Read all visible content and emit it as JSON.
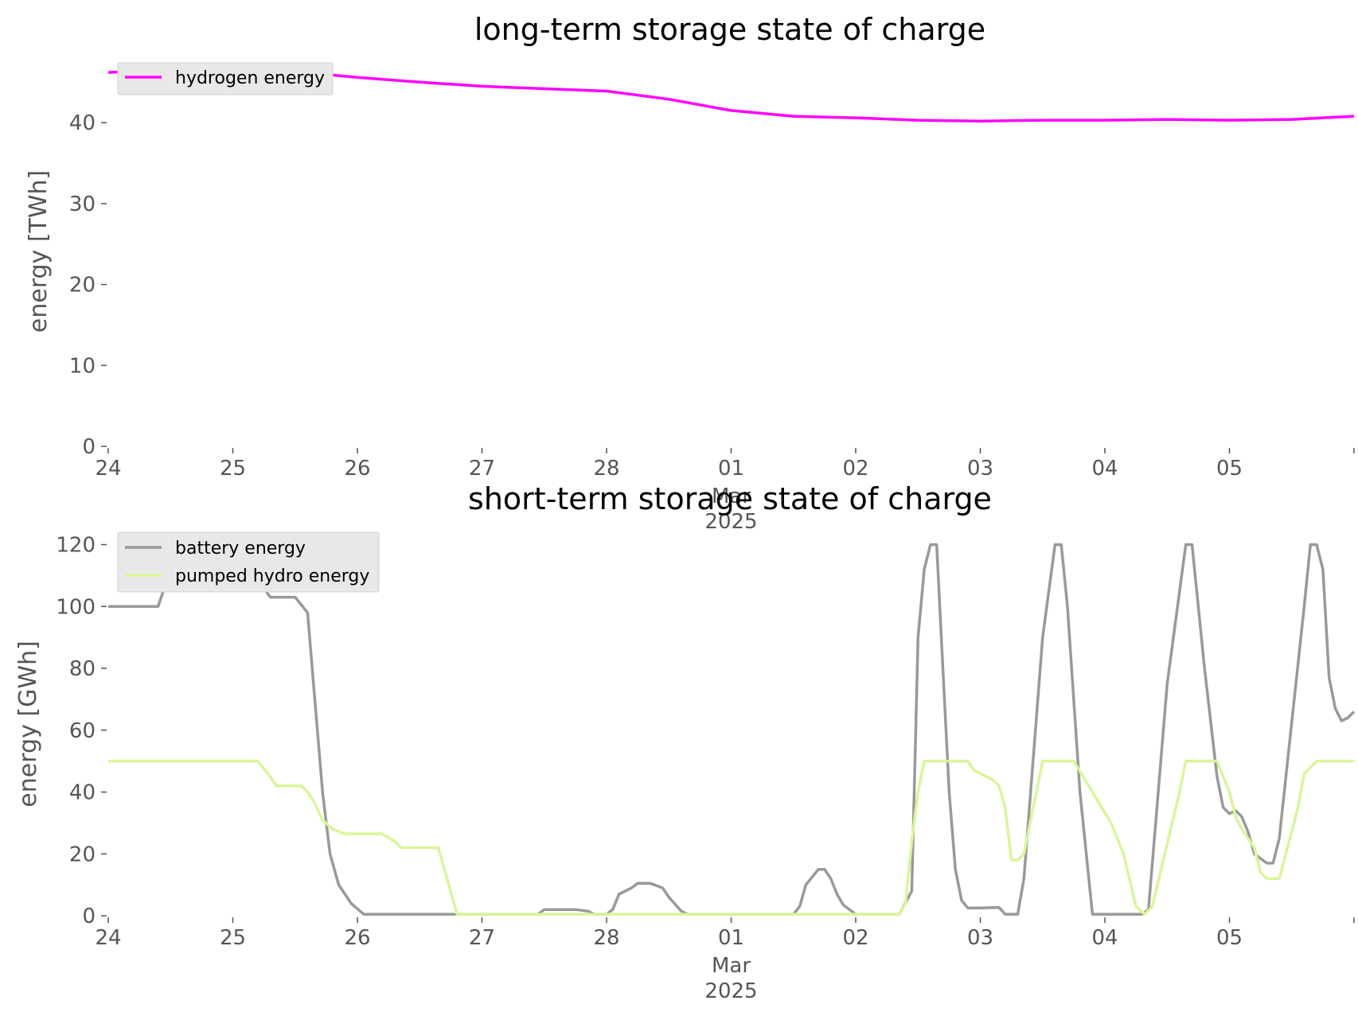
{
  "chart_data": [
    {
      "type": "line",
      "title": "long-term storage state of charge",
      "ylabel": "energy [TWh]",
      "xlabel": "",
      "ylim": [
        0,
        47
      ],
      "x_tick_labels": [
        "24",
        "25",
        "26",
        "27",
        "28",
        "01",
        "02",
        "03",
        "04",
        "05"
      ],
      "x_month_label": "Mar",
      "x_year_label": "2025",
      "y_ticks": [
        0,
        10,
        20,
        30,
        40
      ],
      "grid": false,
      "legend": "top-left",
      "series": [
        {
          "name": "hydrogen energy",
          "color": "#ff00ff",
          "x": [
            0,
            0.5,
            1,
            1.5,
            2,
            2.5,
            3,
            3.5,
            4,
            4.5,
            5,
            5.5,
            6,
            6.5,
            7,
            7.5,
            8,
            8.5,
            9,
            9.5,
            10
          ],
          "values": [
            46.2,
            46.6,
            46.6,
            46.3,
            45.6,
            45.0,
            44.5,
            44.2,
            43.9,
            42.9,
            41.5,
            40.8,
            40.6,
            40.3,
            40.2,
            40.3,
            40.3,
            40.4,
            40.3,
            40.4,
            40.8
          ]
        }
      ]
    },
    {
      "type": "line",
      "title": "short-term storage state of charge",
      "ylabel": "energy [GWh]",
      "xlabel": "",
      "ylim": [
        0,
        124
      ],
      "x_tick_labels": [
        "24",
        "25",
        "26",
        "27",
        "28",
        "01",
        "02",
        "03",
        "04",
        "05"
      ],
      "x_month_label": "Mar",
      "x_year_label": "2025",
      "y_ticks": [
        0,
        20,
        40,
        60,
        80,
        100,
        120
      ],
      "grid": false,
      "legend": "top-left",
      "series": [
        {
          "name": "battery energy",
          "color": "#999999",
          "x": [
            0,
            0.4,
            0.5,
            0.6,
            1.0,
            1.3,
            1.35,
            1.5,
            1.6,
            1.72,
            1.78,
            1.85,
            1.95,
            2.05,
            2.1,
            2.15,
            3.0,
            3.45,
            3.5,
            3.75,
            3.85,
            3.9,
            4.0,
            4.05,
            4.1,
            4.15,
            4.2,
            4.25,
            4.35,
            4.45,
            4.5,
            4.6,
            4.65,
            5.5,
            5.55,
            5.6,
            5.7,
            5.75,
            5.8,
            5.85,
            5.9,
            6.0,
            6.05,
            6.35,
            6.45,
            6.5,
            6.55,
            6.6,
            6.65,
            6.7,
            6.75,
            6.8,
            6.85,
            6.9,
            7.0,
            7.15,
            7.2,
            7.25,
            7.3,
            7.35,
            7.5,
            7.6,
            7.65,
            7.7,
            7.8,
            7.9,
            8.0,
            8.3,
            8.35,
            8.5,
            8.6,
            8.65,
            8.7,
            8.8,
            8.9,
            8.95,
            9.0,
            9.05,
            9.1,
            9.15,
            9.2,
            9.3,
            9.35,
            9.4,
            9.6,
            9.65,
            9.7,
            9.75,
            9.8,
            9.85,
            9.9,
            9.95,
            10.0
          ],
          "values": [
            100,
            100,
            112,
            120,
            120,
            103,
            103,
            103,
            98,
            40,
            20,
            10,
            4,
            0.5,
            0.5,
            0.5,
            0.5,
            0.5,
            2,
            2,
            1.5,
            0.5,
            0.5,
            2,
            7,
            8,
            9,
            10.5,
            10.5,
            9,
            6,
            1.5,
            0.5,
            0.5,
            3,
            10,
            15,
            15,
            12,
            7,
            3.5,
            0.5,
            0.5,
            0.5,
            8,
            90,
            112,
            120,
            120,
            80,
            40,
            15,
            5,
            2.5,
            2.5,
            2.7,
            0.5,
            0.5,
            0.5,
            12,
            90,
            120,
            120,
            100,
            40,
            0.5,
            0.5,
            0.5,
            2,
            75,
            105,
            120,
            120,
            80,
            45,
            35,
            33,
            34,
            32,
            27,
            20,
            17,
            17,
            25,
            100,
            120,
            120,
            112,
            77,
            67,
            63,
            64,
            66
          ]
        },
        {
          "name": "pumped hydro energy",
          "color": "#d9f59a",
          "x": [
            0,
            1.2,
            1.3,
            1.35,
            1.5,
            1.55,
            1.6,
            1.65,
            1.72,
            1.8,
            1.9,
            2.2,
            2.3,
            2.35,
            2.6,
            2.65,
            2.8,
            5.5,
            6.0,
            6.05,
            6.35,
            6.4,
            6.45,
            6.5,
            6.55,
            6.6,
            6.75,
            6.9,
            6.95,
            7.05,
            7.1,
            7.15,
            7.2,
            7.25,
            7.3,
            7.35,
            7.45,
            7.5,
            7.55,
            7.65,
            7.75,
            7.9,
            8.05,
            8.15,
            8.25,
            8.32,
            8.38,
            8.6,
            8.65,
            8.75,
            8.9,
            9.0,
            9.05,
            9.1,
            9.15,
            9.2,
            9.25,
            9.3,
            9.4,
            9.55,
            9.6,
            9.7,
            10.0
          ],
          "values": [
            50,
            50,
            45,
            42,
            42,
            42,
            40,
            37,
            31,
            28,
            26.5,
            26.5,
            24,
            22,
            22,
            22,
            0.5,
            0.5,
            0.5,
            0.5,
            0.5,
            4,
            24,
            40,
            50,
            50,
            50,
            50,
            47,
            45,
            44,
            42,
            35,
            18,
            18,
            20,
            40,
            50,
            50,
            50,
            50,
            40,
            30,
            20,
            3,
            0.5,
            3,
            40,
            50,
            50,
            50,
            40,
            32,
            28,
            25,
            22,
            14,
            12,
            12,
            35,
            46,
            50,
            50
          ]
        }
      ]
    }
  ]
}
